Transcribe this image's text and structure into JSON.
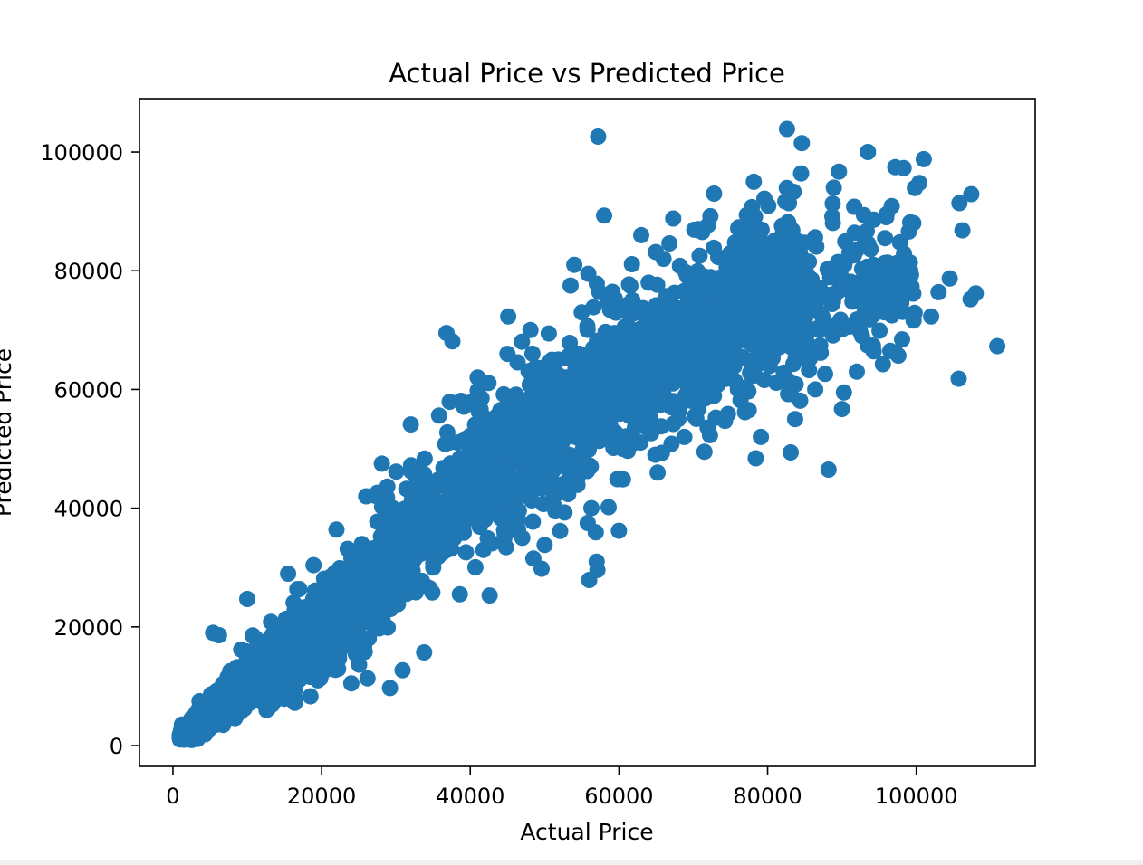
{
  "chart_data": {
    "type": "scatter",
    "title": "Actual Price vs Predicted Price",
    "xlabel": "Actual Price",
    "ylabel": "Predicted Price",
    "xlim": [
      -4500,
      116000
    ],
    "ylim": [
      -3500,
      109000
    ],
    "xticks": [
      0,
      20000,
      40000,
      60000,
      80000,
      100000
    ],
    "yticks": [
      0,
      20000,
      40000,
      60000,
      80000,
      100000
    ],
    "xtick_labels": [
      "0",
      "20000",
      "40000",
      "60000",
      "80000",
      "100000"
    ],
    "ytick_labels": [
      "0",
      "20000",
      "40000",
      "60000",
      "80000",
      "100000"
    ],
    "grid": false,
    "legend": false,
    "marker_color": "#1f77b4",
    "series": [
      {
        "x": [
          57200,
          82600,
          84600,
          58000,
          93500,
          101000,
          98300,
          89600,
          100400,
          105800,
          107400,
          106200,
          110900,
          107300,
          108000,
          105700,
          88200,
          83100,
          78400,
          90000,
          42600,
          36800,
          37600,
          45100,
          32000,
          28100,
          22000,
          10000,
          6200,
          5400,
          56000,
          57100,
          57000,
          49600,
          60000,
          50000,
          38600,
          34900,
          33800,
          30900,
          29200,
          24000,
          18500,
          16400,
          12600,
          84500,
          88900,
          94300,
          95800,
          97800,
          99000,
          72800,
          70700,
          67300,
          63000,
          54000,
          53500,
          48100,
          45000,
          41000,
          40300,
          35800,
          27500,
          26000,
          66000,
          64000,
          55000,
          51000,
          61600,
          60500,
          68800,
          65200,
          64900,
          71500,
          79100,
          83700,
          86400,
          92000,
          96500,
          102000,
          104500,
          74800,
          78800,
          84000,
          91000,
          89500,
          93300,
          87000,
          95700,
          99300,
          103000,
          92700,
          76000,
          80000,
          68000,
          62000,
          59800,
          56300,
          55800,
          47000
        ],
        "y": [
          102600,
          103900,
          101500,
          89300,
          100000,
          98800,
          97300,
          96700,
          94800,
          91400,
          92900,
          86800,
          67300,
          75200,
          76200,
          61800,
          46500,
          49400,
          48400,
          56700,
          25300,
          69500,
          68100,
          72300,
          54100,
          47500,
          36400,
          24700,
          18600,
          19000,
          27900,
          29600,
          31000,
          29800,
          36200,
          33800,
          25500,
          25800,
          15700,
          12700,
          9700,
          10500,
          8300,
          7200,
          6000,
          96400,
          94000,
          88600,
          85500,
          84800,
          86600,
          93000,
          87000,
          88800,
          86000,
          81000,
          77500,
          70000,
          66000,
          59800,
          58000,
          55600,
          42600,
          42000,
          82000,
          78000,
          73000,
          65000,
          58000,
          50000,
          52000,
          46000,
          49000,
          49500,
          52000,
          55000,
          60000,
          63000,
          66500,
          72300,
          78700,
          75000,
          80000,
          85000,
          83000,
          80000,
          76700,
          70000,
          73000,
          79300,
          76400,
          69000,
          60000,
          65000,
          55000,
          51000,
          44900,
          40000,
          37500,
          35000
        ]
      }
    ]
  }
}
